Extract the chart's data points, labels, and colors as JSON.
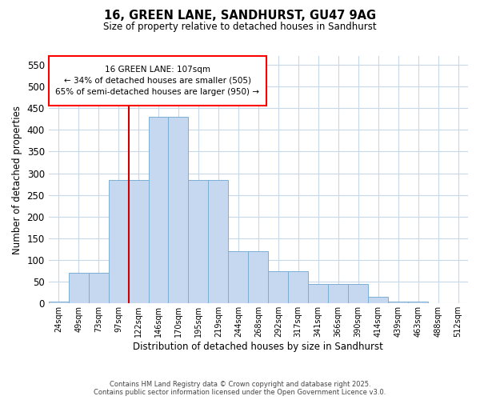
{
  "title": "16, GREEN LANE, SANDHURST, GU47 9AG",
  "subtitle": "Size of property relative to detached houses in Sandhurst",
  "xlabel": "Distribution of detached houses by size in Sandhurst",
  "ylabel": "Number of detached properties",
  "categories": [
    "24sqm",
    "49sqm",
    "73sqm",
    "97sqm",
    "122sqm",
    "146sqm",
    "170sqm",
    "195sqm",
    "219sqm",
    "244sqm",
    "268sqm",
    "292sqm",
    "317sqm",
    "341sqm",
    "366sqm",
    "390sqm",
    "414sqm",
    "439sqm",
    "463sqm",
    "488sqm",
    "512sqm"
  ],
  "values": [
    5,
    70,
    70,
    285,
    285,
    430,
    430,
    285,
    285,
    120,
    120,
    75,
    75,
    45,
    45,
    45,
    15,
    5,
    5,
    0,
    0
  ],
  "bar_color": "#c5d8f0",
  "bar_edge_color": "#7bafd4",
  "annotation_box_text": "16 GREEN LANE: 107sqm\n← 34% of detached houses are smaller (505)\n65% of semi-detached houses are larger (950) →",
  "vline_color": "#cc0000",
  "vline_x": 3.5,
  "ylim": [
    0,
    570
  ],
  "yticks": [
    0,
    50,
    100,
    150,
    200,
    250,
    300,
    350,
    400,
    450,
    500,
    550
  ],
  "background_color": "#ffffff",
  "grid_color": "#c8d8e8",
  "footer_line1": "Contains HM Land Registry data © Crown copyright and database right 2025.",
  "footer_line2": "Contains public sector information licensed under the Open Government Licence v3.0."
}
